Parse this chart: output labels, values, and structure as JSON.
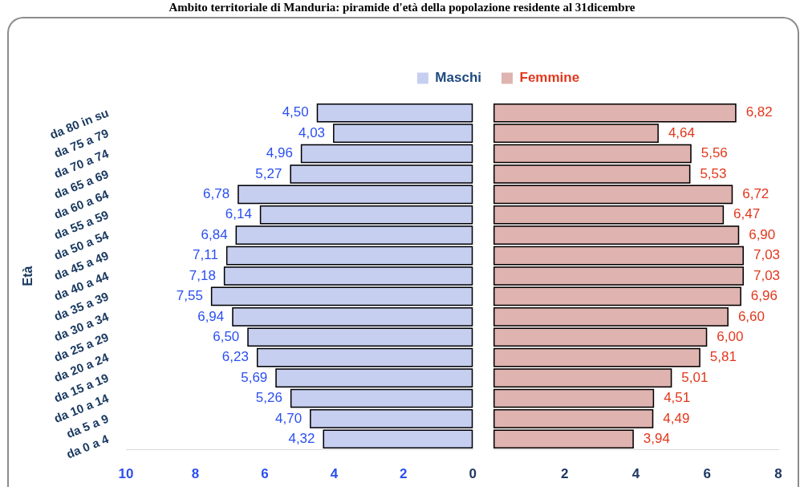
{
  "chart_data": [
    {
      "type": "bar",
      "orientation": "horizontal",
      "title": "Ambito territoriale di Manduria: piramide d'età della popolazione residente al 31dicembre",
      "ylabel": "Età",
      "categories": [
        "da 80 in su",
        "da 75 a 79",
        "da 70 a 74",
        "da 65 a 69",
        "da 60 a 64",
        "da 55 a 59",
        "da 50 a 54",
        "da 45 a 49",
        "da 40 a 44",
        "da 35 a 39",
        "da 30 a 34",
        "da 25 a 29",
        "da 20 a 24",
        "da 15 a 19",
        "da 10 a 14",
        "da 5 a 9",
        "da 0 a 4"
      ],
      "series": [
        {
          "name": "Maschi",
          "color": "#c6cff0",
          "values": [
            4.5,
            4.03,
            4.96,
            5.27,
            6.78,
            6.14,
            6.84,
            7.11,
            7.18,
            7.55,
            6.94,
            6.5,
            6.23,
            5.69,
            5.26,
            4.7,
            4.32
          ],
          "value_labels": [
            "4,50",
            "4,03",
            "4,96",
            "5,27",
            "6,78",
            "6,14",
            "6,84",
            "7,11",
            "7,18",
            "7,55",
            "6,94",
            "6,50",
            "6,23",
            "5,69",
            "5,26",
            "4,70",
            "4,32"
          ]
        }
      ],
      "xlim": [
        10,
        0
      ],
      "xticks": [
        10,
        8,
        6,
        4,
        2,
        0
      ],
      "legend": "top right"
    },
    {
      "type": "bar",
      "orientation": "horizontal",
      "categories": [
        null,
        null,
        null,
        null,
        null,
        null,
        null,
        null,
        null,
        null,
        null,
        null,
        null,
        null,
        null,
        null,
        null
      ],
      "series": [
        {
          "name": "Femmine",
          "color": "#dfb3b0",
          "values": [
            6.82,
            4.64,
            5.56,
            5.53,
            6.72,
            6.47,
            6.9,
            7.03,
            7.03,
            6.96,
            6.6,
            6,
            5.81,
            5.01,
            4.51,
            4.49,
            3.94
          ],
          "value_labels": [
            "6,82",
            "4,64",
            "5,56",
            "5,53",
            "6,72",
            "6,47",
            "6,90",
            "7,03",
            "7,03",
            "6,96",
            "6,60",
            "6,00",
            "5,81",
            "5,01",
            "4,51",
            "4,49",
            "3,94"
          ]
        }
      ],
      "xlim": [
        0,
        8
      ],
      "xticks": [
        2,
        4,
        6,
        8
      ],
      "legend": "top left",
      "tick_labels": "x"
    }
  ]
}
